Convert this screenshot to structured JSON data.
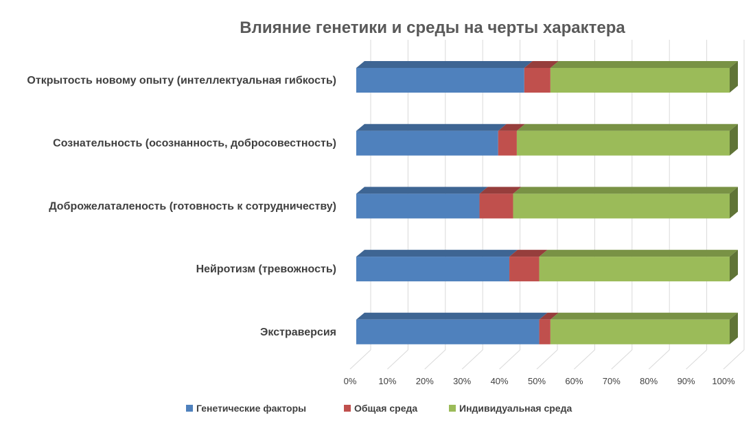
{
  "chart_data": {
    "type": "bar",
    "orientation": "horizontal",
    "stacked": "100%",
    "style": "3d",
    "title": "Влияние генетики и среды на черты характера",
    "categories": [
      "Открытость новому опыту (интеллектуальная гибкость)",
      "Сознательность (осознанность, добросовестность)",
      "Доброжелаталеность (готовность к сотрудничеству)",
      "Нейротизм (тревожность)",
      "Экстраверсия"
    ],
    "series": [
      {
        "name": "Генетические факторы",
        "color": "#4f81bd",
        "values": [
          45,
          38,
          33,
          41,
          49
        ]
      },
      {
        "name": "Общая среда",
        "color": "#c0504d",
        "values": [
          7,
          5,
          9,
          8,
          3
        ]
      },
      {
        "name": "Индивидуальная среда",
        "color": "#9bbb59",
        "values": [
          48,
          57,
          58,
          51,
          48
        ]
      }
    ],
    "x_ticks": [
      "0%",
      "10%",
      "20%",
      "30%",
      "40%",
      "50%",
      "60%",
      "70%",
      "80%",
      "90%",
      "100%"
    ],
    "xlim": [
      0,
      100
    ],
    "grid": true,
    "legend_position": "bottom"
  }
}
